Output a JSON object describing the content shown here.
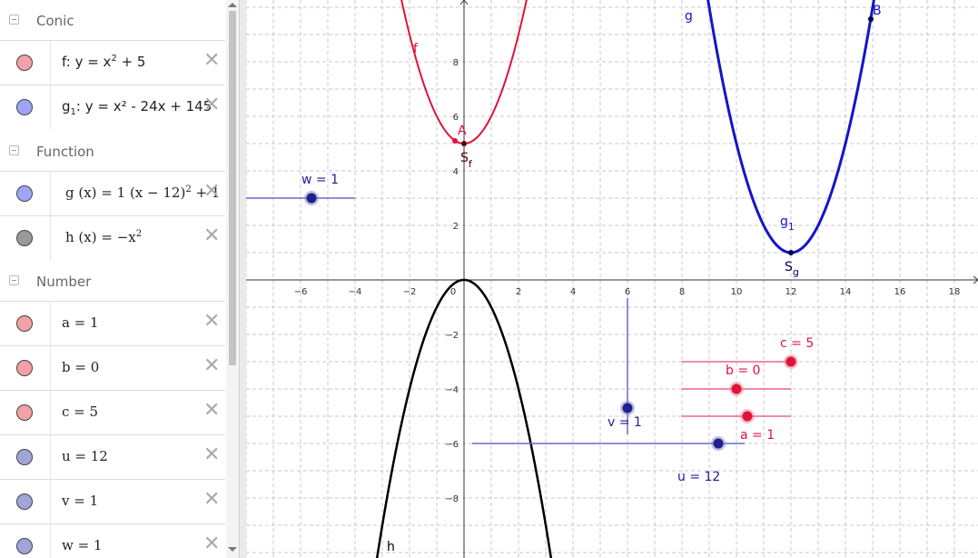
{
  "algebra": {
    "groups": [
      {
        "title": "Conic",
        "top": 0
      },
      {
        "title": "Function",
        "top": 144
      },
      {
        "title": "Number",
        "top": 287
      }
    ],
    "rows": {
      "f": {
        "prefix": "f:  y = x",
        "exp": "2",
        "suffix": " + 5",
        "color": "#f4a0a8"
      },
      "g1": {
        "name": "g",
        "sub": "1",
        "rest": ":  y = x² - 24x + 145",
        "color": "#a0a4f6"
      },
      "g": {
        "lhs": "g (x)  =  1  (x − 12)",
        "exp": "2",
        "suffix": " + 1",
        "color": "#a0a4f6"
      },
      "h": {
        "lhs": "h (x)  =  −x",
        "exp": "2",
        "color": "#999999"
      },
      "a": {
        "text": "a = 1",
        "color": "#f4a0a8"
      },
      "b": {
        "text": "b = 0",
        "color": "#f4a0a8"
      },
      "c": {
        "text": "c = 5",
        "color": "#f4a0a8"
      },
      "u": {
        "text": "u = 12",
        "color": "#a0a4d6"
      },
      "v": {
        "text": "v = 1",
        "color": "#a0a4d6"
      },
      "w": {
        "text": "w = 1",
        "color": "#a0a4d6"
      }
    },
    "delete_glyph": "✕"
  },
  "graph": {
    "x_ticks": [
      "−6",
      "−4",
      "−2",
      "0",
      "2",
      "4",
      "6",
      "8",
      "10",
      "12",
      "14",
      "16",
      "18"
    ],
    "y_ticks": [
      "8",
      "6",
      "4",
      "2",
      "−2",
      "−4",
      "−6",
      "−8"
    ],
    "labels": {
      "f": "f",
      "g": "g",
      "g1": "g",
      "g1_sub": "1",
      "h": "h",
      "A": "A",
      "B": "B",
      "Sf": "S",
      "Sf_sub": "f",
      "Sg": "S",
      "Sg_sub": "g",
      "w": "w = 1",
      "v": "v = 1",
      "u": "u = 12",
      "a": "a = 1",
      "b": "b = 0",
      "c": "c = 5"
    },
    "colors": {
      "f": "#dc143c",
      "g": "#1515c8",
      "h": "#000000",
      "slider_blue": "#1f1f8f",
      "slider_red": "#dc143c",
      "grid": "#c8c8c8"
    }
  }
}
